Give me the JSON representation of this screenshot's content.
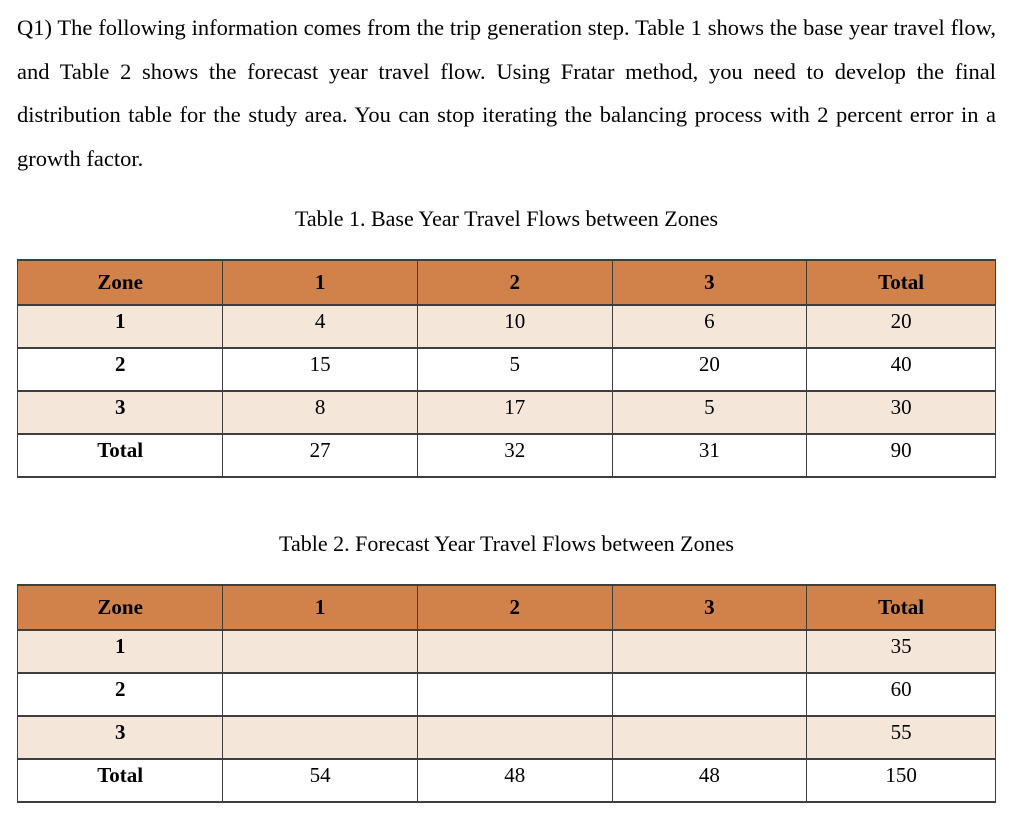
{
  "question": {
    "text": "Q1) The following information comes from the trip generation step. Table 1 shows the base year travel flow, and Table 2 shows the forecast year travel flow. Using Fratar method, you need to develop the final distribution table for the study area. You can stop iterating the balancing process with 2 percent error in a growth factor."
  },
  "colors": {
    "header_bg": "#d0824a",
    "stripe_bg": "#f4e6d9",
    "border_color": "#3e3e3e"
  },
  "tables": [
    {
      "caption": "Table 1. Base Year Travel Flows between Zones",
      "headers": [
        "Zone",
        "1",
        "2",
        "3",
        "Total"
      ],
      "rows": [
        {
          "label": "1",
          "cells": [
            "4",
            "10",
            "6",
            "20"
          ]
        },
        {
          "label": "2",
          "cells": [
            "15",
            "5",
            "20",
            "40"
          ]
        },
        {
          "label": "3",
          "cells": [
            "8",
            "17",
            "5",
            "30"
          ]
        },
        {
          "label": "Total",
          "cells": [
            "27",
            "32",
            "31",
            "90"
          ]
        }
      ]
    },
    {
      "caption": "Table 2. Forecast Year Travel Flows between Zones",
      "headers": [
        "Zone",
        "1",
        "2",
        "3",
        "Total"
      ],
      "rows": [
        {
          "label": "1",
          "cells": [
            "",
            "",
            "",
            "35"
          ]
        },
        {
          "label": "2",
          "cells": [
            "",
            "",
            "",
            "60"
          ]
        },
        {
          "label": "3",
          "cells": [
            "",
            "",
            "",
            "55"
          ]
        },
        {
          "label": "Total",
          "cells": [
            "54",
            "48",
            "48",
            "150"
          ]
        }
      ]
    }
  ]
}
